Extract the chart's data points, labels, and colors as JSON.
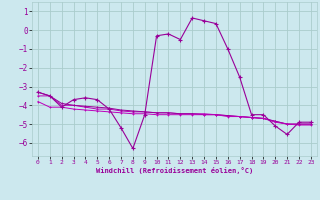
{
  "xlabel": "Windchill (Refroidissement éolien,°C)",
  "bg_color": "#cce8ee",
  "grid_color": "#aacccc",
  "line_color": "#990099",
  "line_color2": "#bb00bb",
  "xlim": [
    -0.5,
    23.5
  ],
  "ylim": [
    -6.7,
    1.5
  ],
  "xticks": [
    0,
    1,
    2,
    3,
    4,
    5,
    6,
    7,
    8,
    9,
    10,
    11,
    12,
    13,
    14,
    15,
    16,
    17,
    18,
    19,
    20,
    21,
    22,
    23
  ],
  "yticks": [
    1,
    0,
    -1,
    -2,
    -3,
    -4,
    -5,
    -6
  ],
  "line1_x": [
    0,
    1,
    2,
    3,
    4,
    5,
    6,
    7,
    8,
    9,
    10,
    11,
    12,
    13,
    14,
    15,
    16,
    17,
    18,
    19,
    20,
    21,
    22,
    23
  ],
  "line1_y": [
    -3.3,
    -3.5,
    -4.1,
    -3.7,
    -3.6,
    -3.7,
    -4.2,
    -5.2,
    -6.3,
    -4.5,
    -0.3,
    -0.2,
    -0.5,
    0.65,
    0.5,
    0.35,
    -1.0,
    -2.5,
    -4.5,
    -4.5,
    -5.1,
    -5.55,
    -4.9,
    -4.9
  ],
  "line2_x": [
    0,
    1,
    2,
    3,
    4,
    5,
    6,
    7,
    8,
    9,
    10,
    11,
    12,
    13,
    14,
    15,
    16,
    17,
    18,
    19,
    20,
    21,
    22,
    23
  ],
  "line2_y": [
    -3.5,
    -3.5,
    -4.0,
    -4.0,
    -4.1,
    -4.2,
    -4.2,
    -4.3,
    -4.35,
    -4.35,
    -4.4,
    -4.4,
    -4.45,
    -4.45,
    -4.45,
    -4.5,
    -4.55,
    -4.6,
    -4.65,
    -4.7,
    -4.85,
    -5.0,
    -5.0,
    -5.0
  ],
  "line3_x": [
    0,
    1,
    2,
    3,
    4,
    5,
    6,
    7,
    8,
    9,
    10,
    11,
    12,
    13,
    14,
    15,
    16,
    17,
    18,
    19,
    20,
    21,
    22,
    23
  ],
  "line3_y": [
    -3.3,
    -3.5,
    -3.9,
    -4.0,
    -4.05,
    -4.1,
    -4.15,
    -4.25,
    -4.3,
    -4.35,
    -4.4,
    -4.4,
    -4.45,
    -4.45,
    -4.5,
    -4.5,
    -4.55,
    -4.6,
    -4.65,
    -4.7,
    -4.85,
    -5.0,
    -5.0,
    -5.0
  ],
  "line4_x": [
    0,
    1,
    2,
    3,
    4,
    5,
    6,
    7,
    8,
    9,
    10,
    11,
    12,
    13,
    14,
    15,
    16,
    17,
    18,
    19,
    20,
    21,
    22,
    23
  ],
  "line4_y": [
    -3.8,
    -4.1,
    -4.1,
    -4.2,
    -4.25,
    -4.3,
    -4.35,
    -4.4,
    -4.45,
    -4.45,
    -4.5,
    -4.5,
    -4.5,
    -4.5,
    -4.5,
    -4.5,
    -4.6,
    -4.6,
    -4.65,
    -4.7,
    -4.9,
    -5.0,
    -5.05,
    -5.05
  ]
}
